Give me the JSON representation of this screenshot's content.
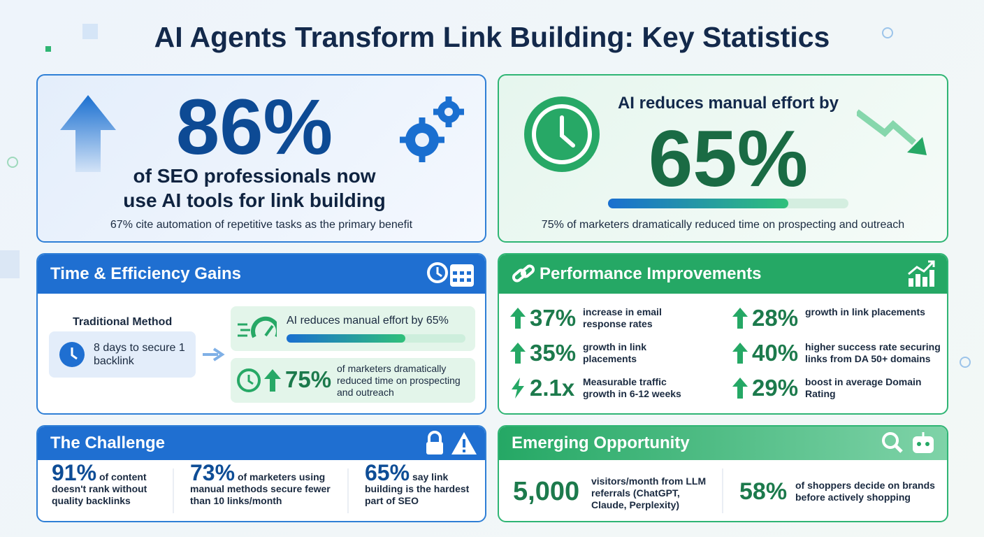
{
  "header": {
    "title": "AI Agents Transform Link Building: Key Statistics"
  },
  "hero_left": {
    "figure": "86%",
    "line1": "of SEO professionals now",
    "line2": "use AI tools for link building",
    "note": "67% cite automation of repetitive tasks as the primary benefit"
  },
  "hero_right": {
    "lead": "AI reduces manual effort by",
    "figure": "65%",
    "note": "75% of marketers dramatically reduced time on prospecting and outreach"
  },
  "time_gains": {
    "title": "Time & Efficiency Gains",
    "traditional_label": "Traditional Method",
    "traditional_text": "8 days to secure 1 backlink",
    "ai_effort": "AI reduces manual effort by 65%",
    "ai_figure": "75%",
    "ai_text": "of marketers dramatically reduced time on prospecting and outreach"
  },
  "performance": {
    "title": "Performance Improvements",
    "items": [
      {
        "figure": "37%",
        "text": "increase in email response rates"
      },
      {
        "figure": "28%",
        "text": "growth in link placements"
      },
      {
        "figure": "35%",
        "text": "growth in link placements"
      },
      {
        "figure": "40%",
        "text": "higher success rate securing links from DA 50+ domains"
      },
      {
        "figure": "2.1x",
        "text": "Measurable traffic growth in 6-12 weeks"
      },
      {
        "figure": "29%",
        "text": "boost in average Domain Rating"
      }
    ]
  },
  "challenge": {
    "title": "The Challenge",
    "items": [
      {
        "figure": "91%",
        "text": "of content doesn't rank without quality backlinks"
      },
      {
        "figure": "73%",
        "text": "of marketers using manual methods secure fewer than 10 links/month"
      },
      {
        "figure": "65%",
        "text": "say link building is the hardest part of SEO"
      }
    ]
  },
  "opportunity": {
    "title": "Emerging Opportunity",
    "items": [
      {
        "figure": "5,000",
        "text": "visitors/month from LLM referrals (ChatGPT, Claude, Perplexity)"
      },
      {
        "figure": "58%",
        "text": "of shoppers decide on brands before actively shopping"
      }
    ]
  }
}
